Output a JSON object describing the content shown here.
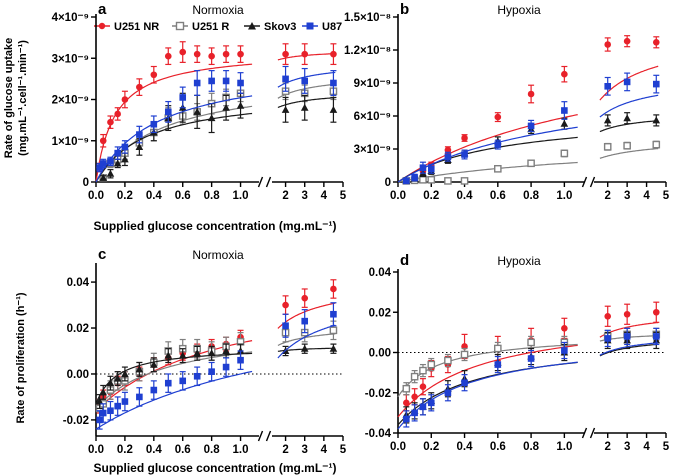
{
  "colors": {
    "U251 NR": "#e8212a",
    "U251 R": "#7f7f7f",
    "Skov3": "#1a1a1a",
    "U87": "#1f3fd1"
  },
  "legend": [
    "U251 NR",
    "U251 R",
    "Skov3",
    "U87"
  ],
  "x_label": "Supplied glucose concentration (mg.mL⁻¹)",
  "y_labels": {
    "top": [
      "Rate of glucose uptake",
      "(mg.mL⁻¹.cell⁻¹.min⁻¹)"
    ],
    "bottom": "Rate of proliferation (h⁻¹)"
  },
  "chart_data": [
    {
      "panel": "a",
      "title": "Normoxia",
      "type": "scatter",
      "x_ticks_left": [
        "0.0",
        "0.2",
        "0.4",
        "0.6",
        "0.8",
        "1.0"
      ],
      "x_ticks_right": [
        "2",
        "3",
        "4",
        "5"
      ],
      "ylim": [
        0,
        4e-09
      ],
      "y_ticks": [
        {
          "v": 0,
          "label": "0"
        },
        {
          "v": 1e-09,
          "label": "1×10⁻⁹"
        },
        {
          "v": 2e-09,
          "label": "2×10⁻⁹"
        },
        {
          "v": 3e-09,
          "label": "3×10⁻⁹"
        },
        {
          "v": 4e-09,
          "label": "4×10⁻⁹"
        }
      ],
      "series": [
        {
          "name": "U251 NR",
          "x": [
            0.025,
            0.05,
            0.1,
            0.15,
            0.2,
            0.3,
            0.4,
            0.5,
            0.6,
            0.7,
            0.8,
            0.9,
            1.0,
            2,
            3,
            4.5
          ],
          "y": [
            3.5e-10,
            1e-09,
            1.45e-09,
            1.65e-09,
            2e-09,
            2.3e-09,
            2.6e-09,
            3.05e-09,
            3.15e-09,
            3.1e-09,
            3.05e-09,
            3.1e-09,
            3.1e-09,
            3.1e-09,
            3.1e-09,
            3.1e-09
          ],
          "err": [
            1e-10,
            1.5e-10,
            1.5e-10,
            1.5e-10,
            2e-10,
            2e-10,
            2e-10,
            2e-10,
            2.5e-10,
            2e-10,
            2e-10,
            2e-10,
            2e-10,
            2.5e-10,
            2.5e-10,
            2.5e-10
          ],
          "fit": {
            "vmax": 3.2e-09,
            "k": 0.13
          }
        },
        {
          "name": "U251 R",
          "x": [
            0.05,
            0.1,
            0.15,
            0.2,
            0.3,
            0.4,
            0.5,
            0.6,
            0.7,
            0.8,
            0.9,
            1.0,
            2,
            3,
            4.5
          ],
          "y": [
            1e-10,
            4.5e-10,
            5.5e-10,
            7e-10,
            9.5e-10,
            1.2e-09,
            1.55e-09,
            1.6e-09,
            1.7e-09,
            1.9e-09,
            2.05e-09,
            2.15e-09,
            2.2e-09,
            2.15e-09,
            2.2e-09
          ],
          "err": [
            5e-11,
            1e-10,
            1e-10,
            1.5e-10,
            1.5e-10,
            2e-10,
            2.5e-10,
            2e-10,
            2e-10,
            2.5e-10,
            2e-10,
            2e-10,
            2e-10,
            2e-10,
            2e-10
          ],
          "fit": {
            "vmax": 2.6e-09,
            "k": 0.45
          }
        },
        {
          "name": "Skov3",
          "x": [
            0.05,
            0.1,
            0.15,
            0.2,
            0.3,
            0.4,
            0.5,
            0.6,
            0.7,
            0.8,
            0.9,
            1.0,
            2,
            3,
            4.5
          ],
          "y": [
            1e-10,
            2e-10,
            4.5e-10,
            5.5e-10,
            8.5e-10,
            1.2e-09,
            1.55e-09,
            1.8e-09,
            1.7e-09,
            1.55e-09,
            1.8e-09,
            1.85e-09,
            1.75e-09,
            1.8e-09,
            1.75e-09
          ],
          "err": [
            5e-11,
            1e-10,
            1e-10,
            1.5e-10,
            2e-10,
            2e-10,
            3e-10,
            3.5e-10,
            4e-10,
            3.5e-10,
            3e-10,
            3e-10,
            3e-10,
            3e-10,
            3e-10
          ],
          "fit": {
            "vmax": 2.2e-09,
            "k": 0.35
          }
        },
        {
          "name": "U87",
          "x": [
            0.025,
            0.05,
            0.1,
            0.15,
            0.2,
            0.3,
            0.4,
            0.5,
            0.6,
            0.7,
            0.8,
            0.9,
            1.0,
            2,
            3,
            4.5
          ],
          "y": [
            3.5e-10,
            4.5e-10,
            5e-10,
            7e-10,
            8.5e-10,
            1.15e-09,
            1.4e-09,
            1.7e-09,
            2.05e-09,
            2.4e-09,
            2.45e-09,
            2.45e-09,
            2.4e-09,
            2.5e-09,
            2.45e-09,
            2.4e-09
          ],
          "err": [
            1e-10,
            1e-10,
            1e-10,
            1.5e-10,
            1.5e-10,
            2e-10,
            2e-10,
            2.5e-10,
            2.5e-10,
            3e-10,
            2.5e-10,
            2.5e-10,
            2.5e-10,
            3e-10,
            3e-10,
            3e-10
          ],
          "fit": {
            "vmax": 2.9e-09,
            "k": 0.42
          }
        }
      ]
    },
    {
      "panel": "b",
      "title": "Hypoxia",
      "type": "scatter",
      "x_ticks_left": [
        "0.0",
        "0.2",
        "0.4",
        "0.6",
        "0.8",
        "1.0"
      ],
      "x_ticks_right": [
        "2",
        "3",
        "4",
        "5"
      ],
      "ylim": [
        0,
        1.5e-08
      ],
      "y_ticks": [
        {
          "v": 0,
          "label": "0"
        },
        {
          "v": 3e-09,
          "label": "3×10⁻⁹"
        },
        {
          "v": 6e-09,
          "label": "6×10⁻⁹"
        },
        {
          "v": 9e-09,
          "label": "9×10⁻⁹"
        },
        {
          "v": 1.2e-08,
          "label": "1.2×10⁻⁸"
        },
        {
          "v": 1.5e-08,
          "label": "1.5×10⁻⁸"
        }
      ],
      "series": [
        {
          "name": "U251 NR",
          "x": [
            0.05,
            0.1,
            0.15,
            0.2,
            0.3,
            0.4,
            0.6,
            0.8,
            1.0,
            2,
            3,
            4.5
          ],
          "y": [
            1e-10,
            3e-10,
            1e-09,
            1.5e-09,
            2.9e-09,
            4e-09,
            5.9e-09,
            8e-09,
            9.8e-09,
            1.25e-08,
            1.28e-08,
            1.27e-08
          ],
          "err": [
            1e-10,
            2e-10,
            4e-10,
            3e-10,
            3e-10,
            3e-10,
            4e-10,
            8e-10,
            7e-10,
            6e-10,
            5e-10,
            5e-10
          ],
          "fit": {
            "vmax": 1.35e-08,
            "k": 1.3
          }
        },
        {
          "name": "U251 R",
          "x": [
            0.05,
            0.1,
            0.15,
            0.2,
            0.3,
            0.4,
            0.6,
            0.8,
            1.0,
            2,
            3,
            4.5
          ],
          "y": [
            1e-10,
            1.5e-10,
            2e-10,
            2e-10,
            1e-10,
            1e-10,
            1.2e-09,
            1.7e-09,
            2.6e-09,
            3.2e-09,
            3.3e-09,
            3.4e-09
          ],
          "err": [
            5e-11,
            5e-11,
            5e-11,
            1e-10,
            5e-11,
            5e-11,
            2e-10,
            2e-10,
            3e-10,
            3e-10,
            3e-10,
            3e-10
          ],
          "fit": {
            "vmax": 3.9e-09,
            "k": 1.3
          }
        },
        {
          "name": "Skov3",
          "x": [
            0.05,
            0.1,
            0.15,
            0.2,
            0.3,
            0.4,
            0.6,
            0.8,
            1.0,
            2,
            3,
            4.5
          ],
          "y": [
            1e-10,
            3e-10,
            8e-10,
            1e-09,
            2e-09,
            2.6e-09,
            3.7e-09,
            4.8e-09,
            5.3e-09,
            5.6e-09,
            5.8e-09,
            5.6e-09
          ],
          "err": [
            1e-10,
            2e-10,
            3e-10,
            3e-10,
            3e-10,
            3e-10,
            4e-10,
            4e-10,
            5e-10,
            5e-10,
            5e-10,
            5e-10
          ],
          "fit": {
            "vmax": 6.3e-09,
            "k": 0.6
          }
        },
        {
          "name": "U87",
          "x": [
            0.05,
            0.1,
            0.15,
            0.2,
            0.3,
            0.4,
            0.6,
            0.8,
            1.0,
            2,
            3,
            4.5
          ],
          "y": [
            1e-10,
            4e-10,
            1.3e-09,
            1.2e-09,
            2.3e-09,
            2.5e-09,
            3.4e-09,
            5.1e-09,
            6.5e-09,
            8.7e-09,
            9.1e-09,
            8.9e-09
          ],
          "err": [
            1e-10,
            3e-10,
            5e-10,
            4e-10,
            4e-10,
            4e-10,
            4e-10,
            5e-10,
            8e-10,
            8e-10,
            8e-10,
            8e-10
          ],
          "fit": {
            "vmax": 9.6e-09,
            "k": 1.0
          }
        }
      ]
    },
    {
      "panel": "c",
      "title": "Normoxia",
      "type": "scatter",
      "x_ticks_left": [
        "0.0",
        "0.2",
        "0.4",
        "0.6",
        "0.8",
        "1.0"
      ],
      "x_ticks_right": [
        "2",
        "3",
        "4",
        "5"
      ],
      "ylim": [
        -0.027,
        0.047
      ],
      "y_ticks": [
        {
          "v": -0.02,
          "label": "-0.02"
        },
        {
          "v": 0,
          "label": "0.00"
        },
        {
          "v": 0.02,
          "label": "0.02"
        },
        {
          "v": 0.04,
          "label": "0.04"
        }
      ],
      "series": [
        {
          "name": "U251 NR",
          "x": [
            0.025,
            0.05,
            0.1,
            0.15,
            0.2,
            0.3,
            0.4,
            0.5,
            0.6,
            0.7,
            0.8,
            0.9,
            1.0,
            2,
            3,
            4.5
          ],
          "y": [
            -0.014,
            -0.01,
            -0.008,
            -0.004,
            -0.002,
            0.0,
            0.004,
            0.007,
            0.009,
            0.01,
            0.012,
            0.013,
            0.016,
            0.03,
            0.033,
            0.037
          ],
          "err": [
            0.003,
            0.003,
            0.003,
            0.003,
            0.003,
            0.003,
            0.003,
            0.003,
            0.003,
            0.003,
            0.003,
            0.003,
            0.003,
            0.004,
            0.004,
            0.004
          ],
          "fit": {
            "a": -0.016,
            "b": 0.056,
            "k": 0.9
          }
        },
        {
          "name": "U251 R",
          "x": [
            0.025,
            0.05,
            0.1,
            0.15,
            0.2,
            0.3,
            0.4,
            0.5,
            0.6,
            0.7,
            0.8,
            0.9,
            1.0,
            2,
            3,
            4.5
          ],
          "y": [
            -0.015,
            -0.013,
            -0.007,
            -0.003,
            -0.003,
            0.001,
            0.005,
            0.01,
            0.011,
            0.011,
            0.01,
            0.012,
            0.014,
            0.018,
            0.018,
            0.019
          ],
          "err": [
            0.004,
            0.004,
            0.004,
            0.004,
            0.004,
            0.004,
            0.004,
            0.004,
            0.004,
            0.004,
            0.004,
            0.004,
            0.004,
            0.004,
            0.004,
            0.004
          ],
          "fit": {
            "a": -0.015,
            "b": 0.036,
            "k": 0.5
          }
        },
        {
          "name": "Skov3",
          "x": [
            0.025,
            0.05,
            0.1,
            0.15,
            0.2,
            0.3,
            0.4,
            0.5,
            0.6,
            0.7,
            0.8,
            0.9,
            1.0,
            2,
            3,
            4.5
          ],
          "y": [
            -0.012,
            -0.008,
            -0.004,
            -0.002,
            0.0,
            0.002,
            0.004,
            0.008,
            0.008,
            0.009,
            0.009,
            0.01,
            0.01,
            0.01,
            0.011,
            0.011
          ],
          "err": [
            0.003,
            0.003,
            0.003,
            0.003,
            0.003,
            0.003,
            0.003,
            0.003,
            0.003,
            0.003,
            0.003,
            0.003,
            0.003,
            0.002,
            0.002,
            0.002
          ],
          "fit": {
            "a": -0.013,
            "b": 0.025,
            "k": 0.15
          }
        },
        {
          "name": "U87",
          "x": [
            0.025,
            0.05,
            0.1,
            0.15,
            0.2,
            0.3,
            0.4,
            0.5,
            0.6,
            0.7,
            0.8,
            0.9,
            1.0,
            2,
            3,
            4.5
          ],
          "y": [
            -0.02,
            -0.017,
            -0.016,
            -0.014,
            -0.012,
            -0.01,
            -0.007,
            -0.004,
            -0.003,
            -0.001,
            0.001,
            0.003,
            0.006,
            0.021,
            0.023,
            0.026
          ],
          "err": [
            0.004,
            0.004,
            0.004,
            0.004,
            0.004,
            0.004,
            0.004,
            0.004,
            0.004,
            0.004,
            0.004,
            0.004,
            0.004,
            0.005,
            0.005,
            0.005
          ],
          "fit": {
            "a": -0.024,
            "b": 0.06,
            "k": 1.5
          }
        }
      ]
    },
    {
      "panel": "d",
      "title": "Hypoxia",
      "type": "scatter",
      "x_ticks_left": [
        "0.0",
        "0.2",
        "0.4",
        "0.6",
        "0.8",
        "1.0"
      ],
      "x_ticks_right": [
        "2",
        "3",
        "4",
        "5"
      ],
      "ylim": [
        -0.04,
        0.04
      ],
      "y_ticks": [
        {
          "v": -0.04,
          "label": "-0.04"
        },
        {
          "v": -0.02,
          "label": "-0.02"
        },
        {
          "v": 0,
          "label": "0.00"
        },
        {
          "v": 0.02,
          "label": "0.02"
        },
        {
          "v": 0.04,
          "label": "0.04"
        }
      ],
      "series": [
        {
          "name": "U251 NR",
          "x": [
            0.05,
            0.1,
            0.15,
            0.2,
            0.3,
            0.4,
            0.6,
            0.8,
            1.0,
            2,
            3,
            4.5
          ],
          "y": [
            -0.025,
            -0.022,
            -0.017,
            -0.008,
            -0.006,
            0.003,
            0.002,
            0.006,
            0.012,
            0.018,
            0.019,
            0.02
          ],
          "err": [
            0.004,
            0.004,
            0.004,
            0.004,
            0.004,
            0.006,
            0.006,
            0.006,
            0.005,
            0.005,
            0.005,
            0.005
          ],
          "fit": {
            "a": -0.032,
            "b": 0.052,
            "k": 0.5
          }
        },
        {
          "name": "U251 R",
          "x": [
            0.05,
            0.1,
            0.15,
            0.2,
            0.3,
            0.4,
            0.6,
            0.8,
            1.0,
            2,
            3,
            4.5
          ],
          "y": [
            -0.018,
            -0.012,
            -0.009,
            -0.006,
            -0.004,
            -0.001,
            0.002,
            0.005,
            0.005,
            0.008,
            0.009,
            0.009
          ],
          "err": [
            0.003,
            0.003,
            0.003,
            0.003,
            0.003,
            0.003,
            0.003,
            0.003,
            0.003,
            0.003,
            0.003,
            0.003
          ],
          "fit": {
            "a": -0.022,
            "b": 0.032,
            "k": 0.25
          }
        },
        {
          "name": "Skov3",
          "x": [
            0.05,
            0.1,
            0.15,
            0.2,
            0.3,
            0.4,
            0.6,
            0.8,
            1.0,
            2,
            3,
            4.5
          ],
          "y": [
            -0.031,
            -0.029,
            -0.027,
            -0.024,
            -0.018,
            -0.013,
            -0.005,
            -0.002,
            0.0,
            0.006,
            0.006,
            0.006
          ],
          "err": [
            0.004,
            0.004,
            0.004,
            0.004,
            0.004,
            0.004,
            0.004,
            0.004,
            0.004,
            0.004,
            0.004,
            0.004
          ],
          "fit": {
            "a": -0.036,
            "b": 0.044,
            "k": 0.45
          }
        },
        {
          "name": "U87",
          "x": [
            0.05,
            0.1,
            0.15,
            0.2,
            0.3,
            0.4,
            0.6,
            0.8,
            1.0,
            2,
            3,
            4.5
          ],
          "y": [
            -0.033,
            -0.03,
            -0.027,
            -0.025,
            -0.02,
            -0.015,
            -0.006,
            -0.003,
            0.001,
            0.007,
            0.008,
            0.008
          ],
          "err": [
            0.004,
            0.004,
            0.004,
            0.004,
            0.004,
            0.004,
            0.004,
            0.004,
            0.004,
            0.004,
            0.004,
            0.004
          ],
          "fit": {
            "a": -0.038,
            "b": 0.047,
            "k": 0.45
          }
        }
      ]
    }
  ]
}
